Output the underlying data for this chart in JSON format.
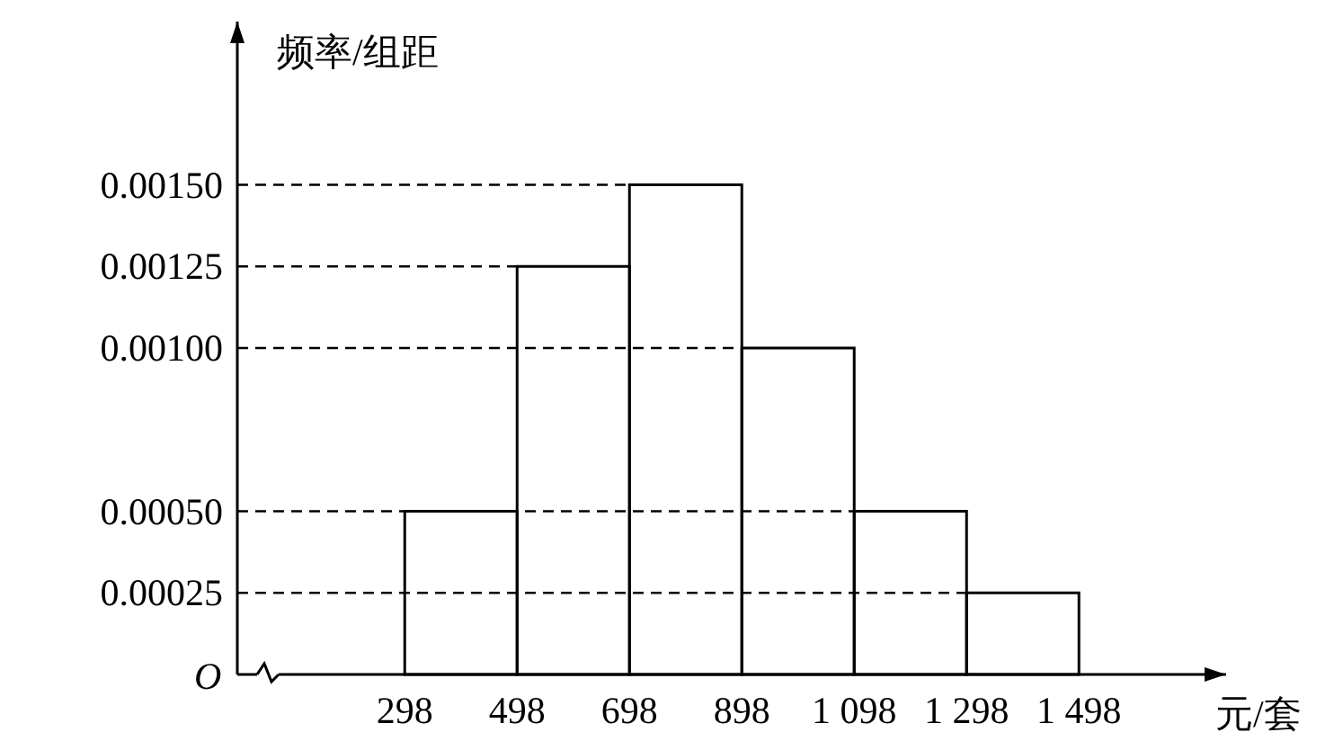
{
  "chart_data": {
    "type": "histogram",
    "ylabel": "频率/组距",
    "xlabel": "元/套",
    "annotations": [
      "O"
    ],
    "bins": [
      298,
      498,
      698,
      898,
      1098,
      1298,
      1498
    ],
    "values": [
      0.0005,
      0.00125,
      0.0015,
      0.001,
      0.0005,
      0.00025
    ],
    "xlim": [
      0,
      1760
    ],
    "ylim": [
      0,
      0.002
    ],
    "xticks": [
      298,
      498,
      698,
      898,
      {
        "value": 1098,
        "label": "1 098"
      },
      {
        "value": 1298,
        "label": "1 298"
      },
      {
        "value": 1498,
        "label": "1 498"
      }
    ],
    "yticks": [
      {
        "value": 0.00025,
        "label": "0.00025"
      },
      {
        "value": 0.0005,
        "label": "0.00050"
      },
      {
        "value": 0.001,
        "label": "0.00100"
      },
      {
        "value": 0.00125,
        "label": "0.00125"
      },
      {
        "value": 0.0015,
        "label": "0.00150"
      }
    ],
    "ref_lines": [
      {
        "axis": "y",
        "value": 0.00025,
        "line_style": "dashed"
      },
      {
        "axis": "y",
        "value": 0.0005,
        "line_style": "dashed"
      },
      {
        "axis": "y",
        "value": 0.001,
        "line_style": "dashed"
      },
      {
        "axis": "y",
        "value": 0.00125,
        "line_style": "dashed"
      },
      {
        "axis": "y",
        "value": 0.0015,
        "line_style": "dashed"
      }
    ]
  }
}
